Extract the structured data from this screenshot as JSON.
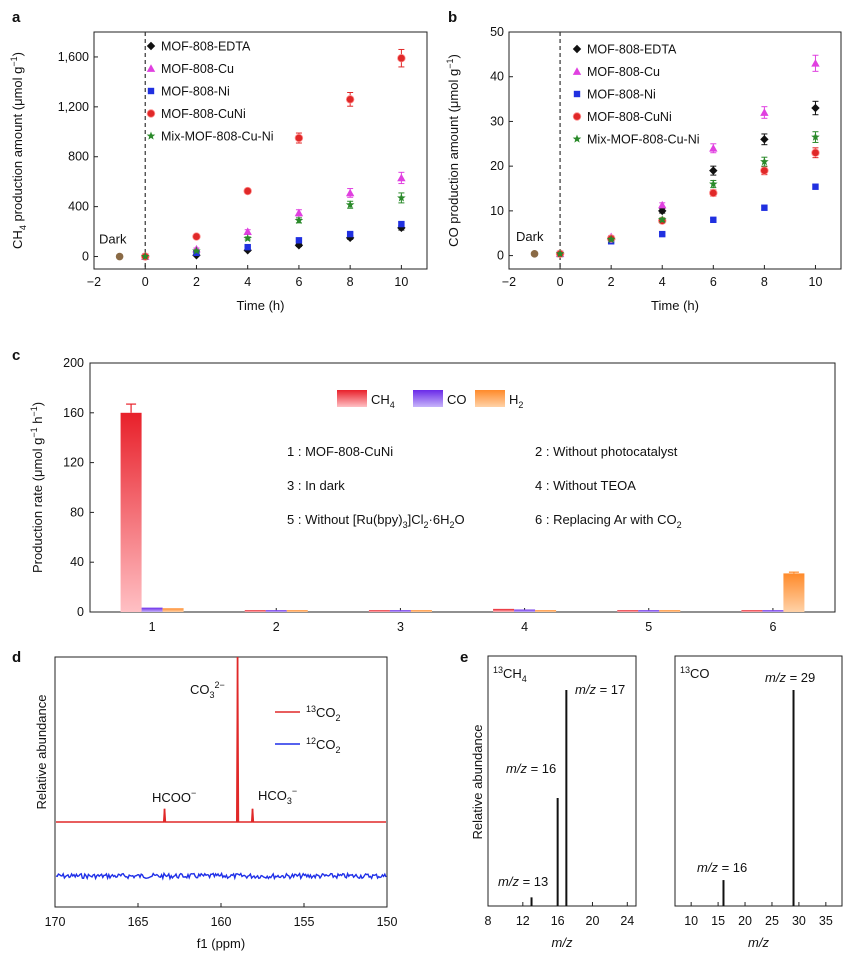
{
  "panels": {
    "a": "a",
    "b": "b",
    "c": "c",
    "d": "d",
    "e": "e"
  },
  "colors": {
    "EDTA": "#111111",
    "Cu": "#e040e0",
    "Ni": "#2030e0",
    "CuNi": "#e02828",
    "Mix": "#2a8a2a",
    "Dark": "#8a6a45"
  },
  "chart_data": [
    {
      "panel": "a",
      "type": "scatter",
      "xlabel": "Time (h)",
      "ylabel_main": "CH",
      "ylabel_sub": "4",
      "ylabel_rest": " production amount (μmol g",
      "ylabel_sup": "−1",
      "ylabel_end": ")",
      "xlim": [
        -2,
        11
      ],
      "ylim": [
        -100,
        1800
      ],
      "xticks": [
        -2,
        0,
        2,
        4,
        6,
        8,
        10
      ],
      "yticks": [
        0,
        400,
        800,
        1200,
        1600
      ],
      "ytick_labels": [
        "0",
        "400",
        "800",
        "1,200",
        "1,600"
      ],
      "annotation": "Dark",
      "dark_point": {
        "x": -1,
        "y": 0
      },
      "series": [
        {
          "name": "MOF-808-EDTA",
          "marker": "diamond",
          "color_key": "EDTA",
          "x": [
            0,
            2,
            4,
            6,
            8,
            10
          ],
          "y": [
            0,
            10,
            50,
            90,
            150,
            230
          ],
          "err": [
            0,
            5,
            8,
            10,
            12,
            18
          ]
        },
        {
          "name": "MOF-808-Cu",
          "marker": "triangle",
          "color_key": "Cu",
          "x": [
            0,
            2,
            4,
            6,
            8,
            10
          ],
          "y": [
            0,
            60,
            200,
            350,
            510,
            630
          ],
          "err": [
            0,
            8,
            15,
            25,
            35,
            45
          ]
        },
        {
          "name": "MOF-808-Ni",
          "marker": "square",
          "color_key": "Ni",
          "x": [
            0,
            2,
            4,
            6,
            8,
            10
          ],
          "y": [
            0,
            30,
            75,
            130,
            180,
            260
          ],
          "err": [
            0,
            5,
            8,
            10,
            12,
            15
          ]
        },
        {
          "name": "MOF-808-CuNi",
          "marker": "circle",
          "color_key": "CuNi",
          "x": [
            0,
            2,
            4,
            6,
            8,
            10
          ],
          "y": [
            0,
            160,
            525,
            950,
            1260,
            1590
          ],
          "err": [
            0,
            10,
            20,
            40,
            55,
            70
          ]
        },
        {
          "name": "Mix-MOF-808-Cu-Ni",
          "marker": "star",
          "color_key": "Mix",
          "x": [
            0,
            2,
            4,
            6,
            8,
            10
          ],
          "y": [
            0,
            45,
            145,
            290,
            415,
            470
          ],
          "err": [
            0,
            6,
            12,
            20,
            28,
            40
          ]
        }
      ]
    },
    {
      "panel": "b",
      "type": "scatter",
      "xlabel": "Time (h)",
      "ylabel_rest": "CO production amount (μmol g",
      "ylabel_sup": "−1",
      "ylabel_end": ")",
      "xlim": [
        -2,
        11
      ],
      "ylim": [
        -3,
        50
      ],
      "xticks": [
        -2,
        0,
        2,
        4,
        6,
        8,
        10
      ],
      "yticks": [
        0,
        10,
        20,
        30,
        40,
        50
      ],
      "ytick_labels": [
        "0",
        "10",
        "20",
        "30",
        "40",
        "50"
      ],
      "annotation": "Dark",
      "dark_point": {
        "x": -1,
        "y": 0.4
      },
      "series": [
        {
          "name": "MOF-808-EDTA",
          "marker": "diamond",
          "color_key": "EDTA",
          "x": [
            0,
            2,
            4,
            6,
            8,
            10
          ],
          "y": [
            0.4,
            3.6,
            10,
            19,
            26,
            33
          ],
          "err": [
            0,
            0.3,
            0.5,
            1,
            1.2,
            1.5
          ]
        },
        {
          "name": "MOF-808-Cu",
          "marker": "triangle",
          "color_key": "Cu",
          "x": [
            0,
            2,
            4,
            6,
            8,
            10
          ],
          "y": [
            0.4,
            4.2,
            11.3,
            24,
            32,
            43
          ],
          "err": [
            0,
            0.3,
            0.5,
            1,
            1.3,
            1.8
          ]
        },
        {
          "name": "MOF-808-Ni",
          "marker": "square",
          "color_key": "Ni",
          "x": [
            0,
            2,
            4,
            6,
            8,
            10
          ],
          "y": [
            0.4,
            3.2,
            4.8,
            8,
            10.7,
            15.4
          ],
          "err": [
            0,
            0.2,
            0.3,
            0.3,
            0.4,
            0.5
          ]
        },
        {
          "name": "MOF-808-CuNi",
          "marker": "circle",
          "color_key": "CuNi",
          "x": [
            0,
            2,
            4,
            6,
            8,
            10
          ],
          "y": [
            0.4,
            3.8,
            7.8,
            14,
            19,
            23
          ],
          "err": [
            0,
            0.3,
            0.4,
            0.7,
            0.9,
            1.1
          ]
        },
        {
          "name": "Mix-MOF-808-Cu-Ni",
          "marker": "star",
          "color_key": "Mix",
          "x": [
            0,
            2,
            4,
            6,
            8,
            10
          ],
          "y": [
            0.4,
            3.6,
            8,
            16,
            21,
            26.5
          ],
          "err": [
            0,
            0.3,
            0.4,
            0.8,
            1,
            1.2
          ]
        }
      ]
    },
    {
      "panel": "c",
      "type": "bar",
      "ylabel_rest": "Production rate (μmol g",
      "ylabel_sup": "−1",
      "ylabel_mid": " h",
      "ylabel_sup2": "−1",
      "ylabel_end": ")",
      "categories": [
        "1",
        "2",
        "3",
        "4",
        "5",
        "6"
      ],
      "ylim": [
        0,
        200
      ],
      "yticks": [
        0,
        40,
        80,
        120,
        160,
        200
      ],
      "series": [
        {
          "name": "CH4",
          "label_main": "CH",
          "label_sub": "4",
          "color_top": "#e8202a",
          "color_bottom": "#ffc0c4",
          "values": [
            160,
            1.5,
            1.5,
            2.5,
            1.5,
            1.5
          ],
          "err": [
            7,
            0,
            0,
            0,
            0,
            0
          ]
        },
        {
          "name": "CO",
          "label_main": "CO",
          "label_sub": "",
          "color_top": "#6a2ae8",
          "color_bottom": "#c7b4fa",
          "values": [
            3.5,
            1.5,
            1.5,
            2,
            1.5,
            1.5
          ],
          "err": [
            0,
            0,
            0,
            0,
            0,
            0
          ]
        },
        {
          "name": "H2",
          "label_main": "H",
          "label_sub": "2",
          "color_top": "#ff8a2a",
          "color_bottom": "#ffd2a8",
          "values": [
            3,
            1.5,
            1.5,
            1.5,
            1.5,
            31
          ],
          "err": [
            0,
            0,
            0,
            0,
            0,
            1
          ]
        }
      ],
      "notes": {
        "n1": "1 : MOF-808-CuNi",
        "n2": "2 : Without photocatalyst",
        "n3": "3 : In dark",
        "n4": "4 : Without TEOA",
        "n5_a": "5 : Without [Ru(bpy)",
        "n5_s1": "3",
        "n5_b": "]Cl",
        "n5_s2": "2",
        "n5_c": "·6H",
        "n5_s3": "2",
        "n5_d": "O",
        "n6_a": "6 : Replacing Ar with CO",
        "n6_s": "2"
      }
    },
    {
      "panel": "d",
      "type": "line",
      "xlabel": "f1 (ppm)",
      "ylabel": "Relative abundance",
      "xlim": [
        170,
        150
      ],
      "xticks": [
        170,
        165,
        160,
        155,
        150
      ],
      "series": [
        {
          "name": "13CO2",
          "label_sup": "13",
          "label_main": "CO",
          "label_sub": "2",
          "color": "#e02828",
          "peaks": [
            {
              "x": 163.4,
              "height": 0.08
            },
            {
              "x": 159.0,
              "height": 1.0
            },
            {
              "x": 158.1,
              "height": 0.08
            }
          ]
        },
        {
          "name": "12CO2",
          "label_sup": "12",
          "label_main": "CO",
          "label_sub": "2",
          "color": "#1f2fe8",
          "peaks": []
        }
      ],
      "annotations": {
        "co3_main": "CO",
        "co3_sub": "3",
        "co3_sup": "2−",
        "hcoo": "HCOO",
        "hcoo_sup": "−",
        "hco3_main": "HCO",
        "hco3_sub": "3",
        "hco3_sup": "−"
      }
    },
    {
      "panel": "e",
      "type": "bar",
      "ylabel": "Relative abundance",
      "subplots": [
        {
          "title_sup": "13",
          "title_main": "CH",
          "title_sub": "4",
          "xlabel": "m/z",
          "xlim": [
            8,
            25
          ],
          "xticks": [
            8,
            12,
            16,
            20,
            24
          ],
          "peaks": [
            {
              "mz": 13,
              "rel": 0.04,
              "label": " = 13"
            },
            {
              "mz": 16,
              "rel": 0.5,
              "label": " = 16"
            },
            {
              "mz": 17,
              "rel": 1.0,
              "label": " = 17"
            }
          ]
        },
        {
          "title_sup": "13",
          "title_main": "CO",
          "title_sub": "",
          "xlabel": "m/z",
          "xlim": [
            7,
            38
          ],
          "xticks": [
            10,
            15,
            20,
            25,
            30,
            35
          ],
          "peaks": [
            {
              "mz": 16,
              "rel": 0.12,
              "label": " = 16"
            },
            {
              "mz": 29,
              "rel": 1.0,
              "label": " = 29"
            }
          ]
        }
      ],
      "mz_prefix": "m/z"
    }
  ]
}
